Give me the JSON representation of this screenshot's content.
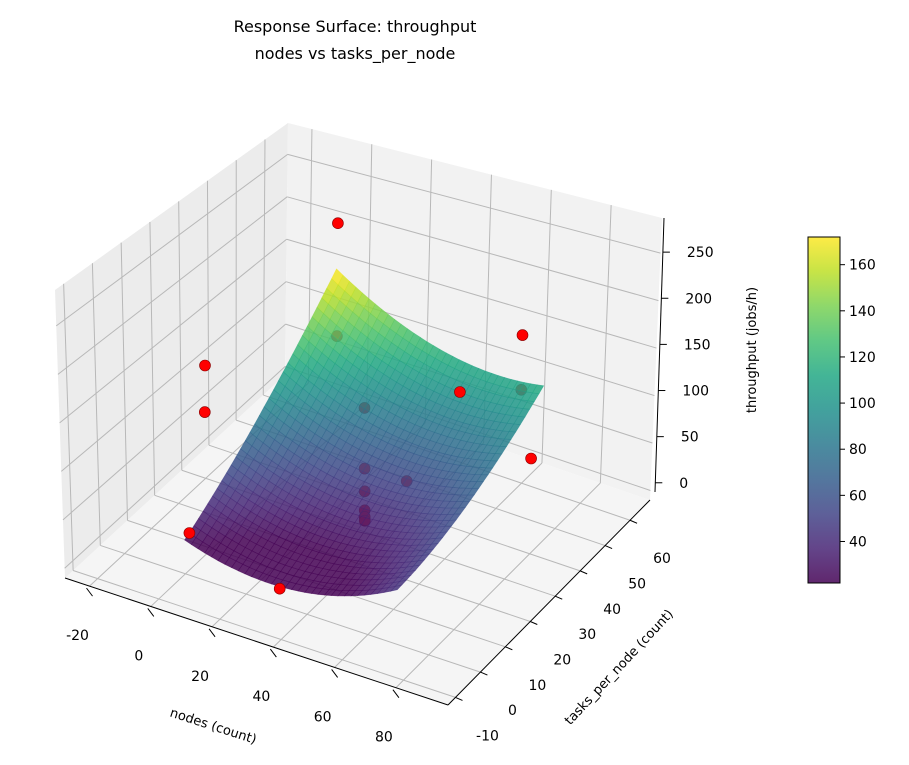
{
  "chart_data": {
    "type": "surface",
    "title": [
      "Response Surface: throughput",
      "nodes vs tasks_per_node"
    ],
    "xlabel": "nodes (count)",
    "ylabel": "tasks_per_node (count)",
    "zlabel": "throughput (jobs/h)",
    "xlim": [
      -28,
      97
    ],
    "ylim": [
      -13,
      68
    ],
    "zlim": [
      -10,
      287
    ],
    "xticks": [
      -20,
      0,
      20,
      40,
      60,
      80
    ],
    "yticks": [
      -10,
      0,
      10,
      20,
      30,
      40,
      50,
      60
    ],
    "zticks": [
      0,
      50,
      100,
      150,
      200,
      250
    ],
    "grid": true,
    "colormap": "viridis",
    "surface": {
      "x_range": [
        0,
        70
      ],
      "y_range": [
        0,
        56
      ],
      "model": "z = 50 - 10X + 55Y + 25X^2 + 15Y^2 - 20XY, X=(x-35)/35, Y=(y-28)/28",
      "coefficients": {
        "c": 50,
        "x": -10,
        "y": 55,
        "xx": 25,
        "yy": 15,
        "xy": -20
      },
      "alpha": 0.85
    },
    "points": [
      [
        -18,
        28,
        121
      ],
      [
        4,
        4,
        152
      ],
      [
        -2,
        4,
        20
      ],
      [
        40,
        -10,
        41
      ],
      [
        4,
        52,
        240
      ],
      [
        4,
        52,
        114
      ],
      [
        35,
        64,
        52
      ],
      [
        66,
        52,
        175
      ],
      [
        66,
        52,
        117
      ],
      [
        86,
        33,
        112
      ],
      [
        35,
        28,
        128
      ],
      [
        35,
        28,
        64
      ],
      [
        35,
        28,
        40
      ],
      [
        35,
        28,
        20
      ],
      [
        35,
        28,
        13
      ],
      [
        35,
        28,
        9
      ],
      [
        49,
        28,
        65
      ]
    ],
    "point_color": "#ff0000",
    "colorbar": {
      "range": [
        22,
        172
      ],
      "ticks": [
        40,
        60,
        80,
        100,
        120,
        140,
        160
      ]
    }
  }
}
